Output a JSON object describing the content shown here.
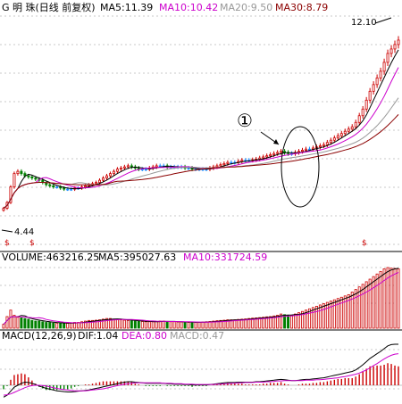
{
  "price_panel": {
    "stock_label": "G 明  珠(日线 前复权)",
    "ma5_label": "MA5:11.39",
    "ma10_label": "MA10:10.42",
    "ma20_label": "MA20:9.50",
    "ma30_label": "MA30:8.79",
    "high_label": "12.10",
    "low_label": "4.44",
    "annotation_label": "①",
    "colors": {
      "ma5": "#000000",
      "ma10": "#cc00cc",
      "ma20": "#999999",
      "ma30": "#8b0000",
      "up": "#cc0000",
      "down": "#008000",
      "flat": "#1a8cff"
    }
  },
  "volume_panel": {
    "volume_label": "VOLUME:463216.25",
    "ma5_label": "MA5:395027.63",
    "ma10_label": "MA10:331724.59"
  },
  "macd_panel": {
    "macd_params_label": "MACD(12,26,9)",
    "dif_label": "DIF:1.04",
    "dea_label": "DEA:0.80",
    "macd_label": "MACD:0.47"
  },
  "chart_data": {
    "type": "candlestick",
    "ylim_price": [
      3.3,
      13.0
    ],
    "grid": true,
    "close": [
      4.44,
      4.7,
      5.4,
      6.0,
      6.1,
      6.0,
      5.9,
      5.85,
      5.8,
      5.75,
      5.7,
      5.6,
      5.5,
      5.45,
      5.4,
      5.4,
      5.35,
      5.3,
      5.3,
      5.3,
      5.35,
      5.35,
      5.4,
      5.45,
      5.5,
      5.55,
      5.6,
      5.7,
      5.8,
      5.9,
      6.0,
      6.1,
      6.2,
      6.25,
      6.3,
      6.35,
      6.3,
      6.25,
      6.2,
      6.2,
      6.2,
      6.25,
      6.3,
      6.35,
      6.35,
      6.35,
      6.3,
      6.3,
      6.3,
      6.3,
      6.3,
      6.25,
      6.25,
      6.2,
      6.2,
      6.2,
      6.2,
      6.2,
      6.25,
      6.3,
      6.35,
      6.4,
      6.45,
      6.5,
      6.5,
      6.5,
      6.55,
      6.6,
      6.6,
      6.6,
      6.62,
      6.65,
      6.7,
      6.75,
      6.8,
      6.85,
      6.9,
      6.95,
      7.0,
      6.95,
      6.9,
      6.9,
      6.95,
      7.0,
      7.05,
      7.1,
      7.1,
      7.15,
      7.2,
      7.25,
      7.3,
      7.4,
      7.5,
      7.6,
      7.7,
      7.8,
      7.9,
      8.0,
      8.1,
      8.3,
      8.6,
      8.9,
      9.3,
      9.7,
      10.0,
      10.3,
      10.6,
      11.0,
      11.4,
      11.6,
      11.8,
      12.0
    ],
    "volume": [
      30,
      90,
      140,
      100,
      85,
      80,
      75,
      70,
      60,
      55,
      55,
      50,
      45,
      45,
      40,
      40,
      40,
      38,
      38,
      40,
      45,
      45,
      50,
      55,
      60,
      60,
      62,
      65,
      70,
      75,
      75,
      70,
      68,
      65,
      62,
      60,
      58,
      55,
      55,
      52,
      50,
      50,
      50,
      52,
      55,
      55,
      52,
      50,
      50,
      48,
      48,
      46,
      45,
      45,
      45,
      46,
      48,
      50,
      52,
      55,
      58,
      60,
      62,
      65,
      65,
      65,
      68,
      70,
      72,
      75,
      78,
      80,
      82,
      85,
      88,
      90,
      95,
      100,
      110,
      105,
      100,
      100,
      110,
      120,
      130,
      140,
      150,
      160,
      170,
      180,
      190,
      200,
      210,
      220,
      230,
      240,
      250,
      260,
      280,
      300,
      320,
      340,
      360,
      380,
      400,
      420,
      440,
      460,
      470,
      465,
      463,
      460
    ],
    "dif": [
      -0.3,
      -0.25,
      -0.15,
      -0.05,
      0.0,
      0.05,
      0.08,
      0.07,
      0.05,
      0.02,
      -0.02,
      -0.05,
      -0.08,
      -0.1,
      -0.12,
      -0.14,
      -0.15,
      -0.16,
      -0.17,
      -0.17,
      -0.16,
      -0.15,
      -0.14,
      -0.13,
      -0.12,
      -0.1,
      -0.08,
      -0.06,
      -0.04,
      -0.02,
      0.0,
      0.02,
      0.04,
      0.06,
      0.08,
      0.09,
      0.09,
      0.08,
      0.07,
      0.06,
      0.05,
      0.05,
      0.05,
      0.05,
      0.05,
      0.05,
      0.04,
      0.04,
      0.03,
      0.03,
      0.03,
      0.02,
      0.02,
      0.01,
      0.01,
      0.01,
      0.01,
      0.01,
      0.02,
      0.03,
      0.04,
      0.05,
      0.06,
      0.07,
      0.07,
      0.07,
      0.08,
      0.08,
      0.08,
      0.08,
      0.08,
      0.09,
      0.09,
      0.1,
      0.11,
      0.12,
      0.13,
      0.14,
      0.15,
      0.14,
      0.13,
      0.12,
      0.12,
      0.13,
      0.14,
      0.15,
      0.15,
      0.16,
      0.17,
      0.18,
      0.19,
      0.21,
      0.23,
      0.25,
      0.27,
      0.29,
      0.31,
      0.33,
      0.35,
      0.39,
      0.45,
      0.52,
      0.6,
      0.68,
      0.74,
      0.8,
      0.86,
      0.93,
      1.0,
      1.03,
      1.04,
      1.04
    ],
    "dea": [
      -0.25,
      -0.24,
      -0.22,
      -0.18,
      -0.14,
      -0.1,
      -0.06,
      -0.03,
      -0.01,
      0.0,
      0.0,
      -0.01,
      -0.02,
      -0.04,
      -0.06,
      -0.08,
      -0.1,
      -0.11,
      -0.12,
      -0.13,
      -0.14,
      -0.14,
      -0.14,
      -0.14,
      -0.13,
      -0.12,
      -0.11,
      -0.1,
      -0.09,
      -0.07,
      -0.05,
      -0.03,
      -0.01,
      0.01,
      0.03,
      0.04,
      0.05,
      0.06,
      0.06,
      0.06,
      0.06,
      0.06,
      0.06,
      0.06,
      0.06,
      0.05,
      0.05,
      0.05,
      0.04,
      0.04,
      0.04,
      0.03,
      0.03,
      0.03,
      0.02,
      0.02,
      0.02,
      0.02,
      0.02,
      0.02,
      0.03,
      0.03,
      0.04,
      0.04,
      0.05,
      0.05,
      0.06,
      0.06,
      0.07,
      0.07,
      0.07,
      0.08,
      0.08,
      0.08,
      0.09,
      0.09,
      0.1,
      0.11,
      0.11,
      0.12,
      0.12,
      0.12,
      0.12,
      0.12,
      0.12,
      0.13,
      0.13,
      0.13,
      0.14,
      0.14,
      0.15,
      0.16,
      0.17,
      0.18,
      0.19,
      0.21,
      0.22,
      0.24,
      0.26,
      0.28,
      0.31,
      0.35,
      0.39,
      0.44,
      0.5,
      0.55,
      0.61,
      0.67,
      0.72,
      0.76,
      0.79,
      0.8
    ]
  }
}
